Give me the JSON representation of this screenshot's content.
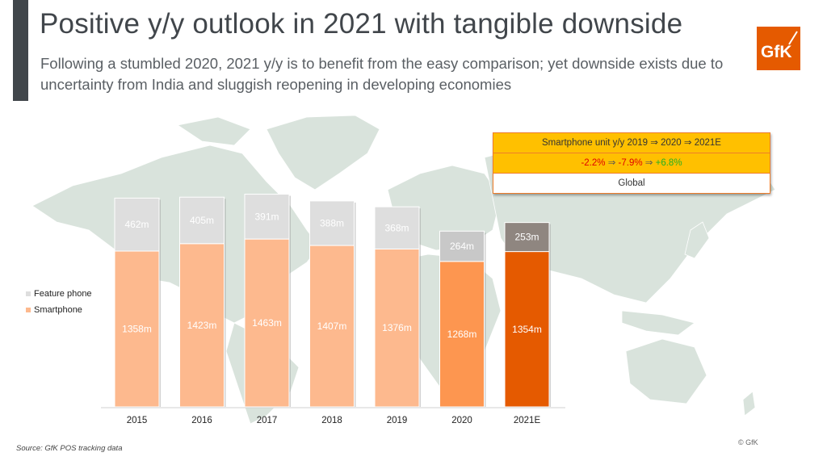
{
  "header": {
    "title": "Positive y/y outlook in 2021 with tangible downside",
    "subtitle": "Following a stumbled 2020, 2021 y/y is to benefit from the easy comparison; yet downside exists due to uncertainty from India and sluggish reopening in developing economies"
  },
  "logo": {
    "text": "GfK",
    "color": "#e55a00",
    "icon": "gfk-logo-icon"
  },
  "callout": {
    "header": "Smartphone unit y/y 2019 ⇒ 2020 ⇒ 2021E",
    "values": [
      {
        "text": "-2.2%",
        "sign": "neg"
      },
      {
        "text": "-7.9%",
        "sign": "neg"
      },
      {
        "text": "+6.8%",
        "sign": "pos"
      }
    ],
    "arrow": "⇒",
    "region": "Global",
    "colors": {
      "fill": "#ffc000",
      "border": "#ef7d2a",
      "negative": "#e00000",
      "positive": "#22b022"
    }
  },
  "footer": {
    "source": "Source: GfK POS tracking data",
    "copyright": "© GfK"
  },
  "chart_data": {
    "type": "bar",
    "stacked": true,
    "title": "",
    "xlabel": "",
    "ylabel": "",
    "unit": "m",
    "categories": [
      "2015",
      "2016",
      "2017",
      "2018",
      "2019",
      "2020",
      "2021E"
    ],
    "series": [
      {
        "name": "Smartphone",
        "values": [
          1358,
          1423,
          1463,
          1407,
          1376,
          1268,
          1354
        ],
        "labels": [
          "1358m",
          "1423m",
          "1463m",
          "1407m",
          "1376m",
          "1268m",
          "1354m"
        ],
        "color": "#fdb98e",
        "highlight_colors": {
          "2020": "#fd9650",
          "2021E": "#e55a00"
        }
      },
      {
        "name": "Feature phone",
        "values": [
          462,
          405,
          391,
          388,
          368,
          264,
          253
        ],
        "labels": [
          "462m",
          "405m",
          "391m",
          "388m",
          "368m",
          "264m",
          "253m"
        ],
        "color": "#dedede",
        "highlight_colors": {
          "2020": "#c8c8c8",
          "2021E": "#8f8680"
        }
      }
    ],
    "legend": [
      {
        "name": "Feature phone",
        "color": "#dedede"
      },
      {
        "name": "Smartphone",
        "color": "#fdb98e"
      }
    ],
    "legend_position": "left",
    "ylim": [
      0,
      1900
    ],
    "grid": false,
    "y_axis_shown": false,
    "background": "world map"
  }
}
